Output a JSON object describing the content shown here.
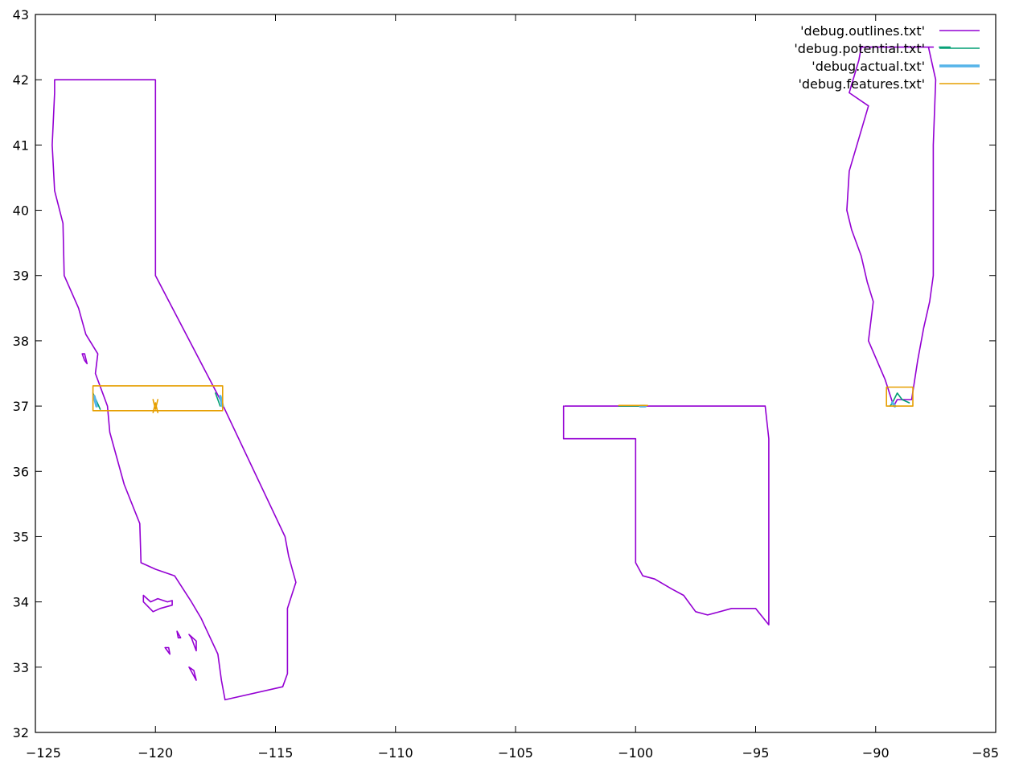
{
  "chart_data": {
    "type": "line",
    "title": "",
    "xlabel": "",
    "ylabel": "",
    "xlim": [
      -125,
      -85
    ],
    "ylim": [
      32,
      43
    ],
    "x_ticks": [
      -125,
      -120,
      -115,
      -110,
      -105,
      -100,
      -95,
      -90,
      -85
    ],
    "y_ticks": [
      32,
      33,
      34,
      35,
      36,
      37,
      38,
      39,
      40,
      41,
      42,
      43
    ],
    "x_tick_labels": [
      "−125",
      "−120",
      "−115",
      "−110",
      "−105",
      "−100",
      "−95",
      "−90",
      "−85"
    ],
    "y_tick_labels": [
      "32",
      "33",
      "34",
      "35",
      "36",
      "37",
      "38",
      "39",
      "40",
      "41",
      "42",
      "43"
    ],
    "grid": false,
    "legend_position": "top-right",
    "series": [
      {
        "name": "'debug.outlines.txt'",
        "color": "#9400d3",
        "polylines": [
          [
            [
              -124.2,
              42.0
            ],
            [
              -120.0,
              42.0
            ],
            [
              -120.0,
              39.0
            ],
            [
              -117.3,
              37.1
            ],
            [
              -114.6,
              35.0
            ],
            [
              -114.45,
              34.7
            ],
            [
              -114.15,
              34.3
            ],
            [
              -114.5,
              33.9
            ],
            [
              -114.5,
              33.4
            ],
            [
              -114.5,
              32.9
            ],
            [
              -114.7,
              32.7
            ],
            [
              -117.1,
              32.5
            ],
            [
              -117.25,
              32.8
            ],
            [
              -117.4,
              33.2
            ],
            [
              -118.1,
              33.75
            ],
            [
              -118.5,
              34.0
            ],
            [
              -119.2,
              34.4
            ],
            [
              -120.0,
              34.5
            ],
            [
              -120.6,
              34.6
            ],
            [
              -120.65,
              35.2
            ],
            [
              -121.3,
              35.8
            ],
            [
              -121.9,
              36.6
            ],
            [
              -122.0,
              37.0
            ],
            [
              -122.5,
              37.5
            ],
            [
              -122.4,
              37.8
            ],
            [
              -122.9,
              38.1
            ],
            [
              -123.2,
              38.5
            ],
            [
              -123.8,
              39.0
            ],
            [
              -123.85,
              39.8
            ],
            [
              -124.2,
              40.3
            ],
            [
              -124.3,
              41.0
            ],
            [
              -124.2,
              41.8
            ],
            [
              -124.2,
              42.0
            ]
          ],
          [
            [
              -102.95,
              37.0
            ],
            [
              -94.6,
              37.0
            ],
            [
              -94.45,
              36.5
            ],
            [
              -94.45,
              35.4
            ],
            [
              -94.45,
              33.65
            ],
            [
              -95.0,
              33.9
            ],
            [
              -96.0,
              33.9
            ],
            [
              -97.0,
              33.8
            ],
            [
              -97.5,
              33.85
            ],
            [
              -98.0,
              34.1
            ],
            [
              -98.5,
              34.2
            ],
            [
              -99.2,
              34.35
            ],
            [
              -99.7,
              34.4
            ],
            [
              -100.0,
              34.6
            ],
            [
              -100.0,
              36.5
            ],
            [
              -103.0,
              36.5
            ],
            [
              -103.0,
              37.0
            ]
          ],
          [
            [
              -87.6,
              42.5
            ],
            [
              -90.6,
              42.5
            ],
            [
              -90.7,
              42.3
            ],
            [
              -91.1,
              41.8
            ],
            [
              -90.3,
              41.6
            ],
            [
              -91.1,
              40.6
            ],
            [
              -91.2,
              40.0
            ],
            [
              -91.0,
              39.7
            ],
            [
              -90.6,
              39.3
            ],
            [
              -90.35,
              38.9
            ],
            [
              -90.1,
              38.6
            ],
            [
              -90.3,
              38.0
            ],
            [
              -89.6,
              37.4
            ],
            [
              -89.25,
              37.0
            ],
            [
              -89.1,
              37.1
            ],
            [
              -88.5,
              37.1
            ],
            [
              -88.25,
              37.7
            ],
            [
              -88.0,
              38.2
            ],
            [
              -87.75,
              38.6
            ],
            [
              -87.6,
              39.0
            ],
            [
              -87.6,
              41.0
            ],
            [
              -87.5,
              42.0
            ],
            [
              -87.8,
              42.5
            ],
            [
              -87.6,
              42.5
            ]
          ],
          [
            [
              -123.05,
              37.8
            ],
            [
              -122.95,
              37.7
            ],
            [
              -122.85,
              37.65
            ],
            [
              -122.95,
              37.8
            ],
            [
              -123.05,
              37.8
            ]
          ],
          [
            [
              -120.5,
              34.1
            ],
            [
              -120.2,
              34.0
            ],
            [
              -119.9,
              34.05
            ],
            [
              -119.5,
              34.0
            ],
            [
              -119.3,
              34.02
            ],
            [
              -119.3,
              33.95
            ],
            [
              -119.8,
              33.9
            ],
            [
              -120.1,
              33.85
            ],
            [
              -120.5,
              34.0
            ],
            [
              -120.5,
              34.1
            ]
          ],
          [
            [
              -118.6,
              33.5
            ],
            [
              -118.3,
              33.4
            ],
            [
              -118.3,
              33.25
            ],
            [
              -118.5,
              33.45
            ],
            [
              -118.6,
              33.5
            ]
          ],
          [
            [
              -119.1,
              33.55
            ],
            [
              -118.95,
              33.45
            ],
            [
              -119.05,
              33.45
            ],
            [
              -119.1,
              33.55
            ]
          ],
          [
            [
              -119.6,
              33.3
            ],
            [
              -119.4,
              33.2
            ],
            [
              -119.45,
              33.3
            ],
            [
              -119.6,
              33.3
            ]
          ],
          [
            [
              -118.6,
              33.0
            ],
            [
              -118.3,
              32.8
            ],
            [
              -118.4,
              32.95
            ],
            [
              -118.6,
              33.0
            ]
          ]
        ]
      },
      {
        "name": "'debug.potential.txt'",
        "color": "#009e73",
        "polylines": [
          [
            [
              -122.6,
              37.2
            ],
            [
              -122.3,
              36.95
            ]
          ],
          [
            [
              -117.3,
              37.0
            ],
            [
              -117.5,
              37.2
            ]
          ],
          [
            [
              -89.4,
              37.0
            ],
            [
              -89.3,
              37.05
            ],
            [
              -89.1,
              37.2
            ],
            [
              -88.9,
              37.1
            ],
            [
              -88.6,
              37.05
            ]
          ],
          [
            [
              -100.7,
              37.0
            ],
            [
              -99.6,
              37.0
            ]
          ],
          [
            [
              -87.35,
              42.5
            ],
            [
              -86.9,
              42.5
            ]
          ]
        ]
      },
      {
        "name": "'debug.actual.txt'",
        "color": "#56b4e9",
        "polylines": [
          [
            [
              -122.55,
              37.15
            ],
            [
              -122.45,
              37.0
            ]
          ],
          [
            [
              -117.2,
              37.0
            ],
            [
              -117.3,
              37.15
            ]
          ],
          [
            [
              -89.3,
              37.05
            ],
            [
              -89.2,
              37.0
            ]
          ],
          [
            [
              -99.8,
              37.0
            ],
            [
              -99.6,
              37.0
            ]
          ]
        ]
      },
      {
        "name": "'debug.features.txt'",
        "color": "#e69f00",
        "polylines": [
          [
            [
              -122.6,
              36.93
            ],
            [
              -117.2,
              36.93
            ],
            [
              -117.2,
              37.31
            ],
            [
              -122.6,
              37.31
            ],
            [
              -122.6,
              36.93
            ]
          ],
          [
            [
              -89.55,
              37.0
            ],
            [
              -88.45,
              37.0
            ],
            [
              -88.45,
              37.29
            ],
            [
              -89.55,
              37.29
            ],
            [
              -89.55,
              37.0
            ]
          ],
          [
            [
              -120.1,
              37.1
            ],
            [
              -120.0,
              36.95
            ],
            [
              -119.9,
              37.1
            ]
          ],
          [
            [
              -120.1,
              36.9
            ],
            [
              -120.0,
              37.05
            ],
            [
              -119.9,
              36.9
            ]
          ],
          [
            [
              -100.7,
              37.01
            ],
            [
              -99.5,
              37.01
            ]
          ]
        ]
      }
    ]
  }
}
